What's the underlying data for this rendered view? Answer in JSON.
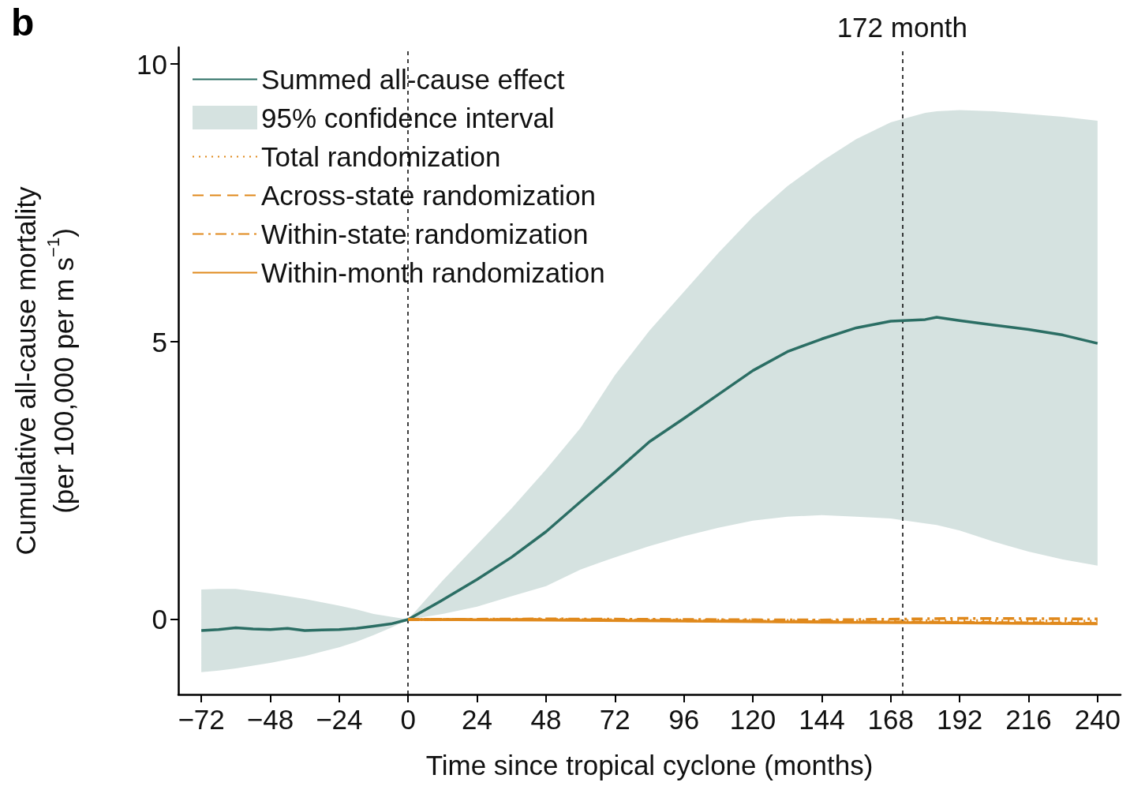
{
  "chart_data": {
    "type": "line",
    "xlabel": "Time since tropical cyclone (months)",
    "ylabel": "Cumulative all-cause mortality\n(per 100,000 per m s$^{−1}$)",
    "annotations": [
      "b",
      "95% confidence interval"
    ],
    "xlim": [
      -80,
      248
    ],
    "xticks": [
      -72,
      -48,
      -24,
      0,
      24,
      48,
      72,
      96,
      120,
      144,
      168,
      192,
      216,
      240
    ],
    "ylim": [
      -1.35,
      10.3
    ],
    "yticks": [
      0,
      5,
      10
    ],
    "grid": false,
    "legend": "top left",
    "marker": "none",
    "ref_lines": [
      {
        "axis": "x",
        "value": 0,
        "label": null,
        "color": "#000000",
        "line_style": "dashed"
      },
      {
        "axis": "x",
        "value": 172,
        "label": "172 month",
        "color": "#000000",
        "line_style": "dashed"
      }
    ],
    "series": [
      {
        "name": "Summed all-cause effect",
        "color": "#2b6e64",
        "line_style": "solid",
        "x": [
          -72,
          -66,
          -60,
          -54,
          -48,
          -42,
          -36,
          -30,
          -24,
          -18,
          -12,
          -6,
          0,
          12,
          24,
          36,
          48,
          60,
          72,
          84,
          96,
          108,
          120,
          132,
          144,
          156,
          168,
          180,
          184,
          192,
          204,
          216,
          228,
          240
        ],
        "values": [
          -0.2,
          -0.18,
          -0.15,
          -0.17,
          -0.18,
          -0.16,
          -0.2,
          -0.19,
          -0.18,
          -0.16,
          -0.12,
          -0.08,
          0,
          0.35,
          0.72,
          1.12,
          1.58,
          2.12,
          2.65,
          3.2,
          3.62,
          4.05,
          4.48,
          4.82,
          5.05,
          5.25,
          5.37,
          5.4,
          5.44,
          5.38,
          5.3,
          5.22,
          5.12,
          4.97
        ],
        "lower": [
          -0.95,
          -0.92,
          -0.88,
          -0.83,
          -0.78,
          -0.72,
          -0.66,
          -0.58,
          -0.5,
          -0.4,
          -0.28,
          -0.15,
          0,
          0.1,
          0.23,
          0.42,
          0.6,
          0.9,
          1.12,
          1.32,
          1.5,
          1.65,
          1.78,
          1.85,
          1.88,
          1.85,
          1.82,
          1.73,
          1.7,
          1.6,
          1.4,
          1.22,
          1.08,
          0.97
        ],
        "upper": [
          0.54,
          0.55,
          0.55,
          0.51,
          0.47,
          0.42,
          0.37,
          0.31,
          0.25,
          0.18,
          0.1,
          0.05,
          0,
          0.7,
          1.35,
          2.0,
          2.7,
          3.45,
          4.4,
          5.2,
          5.9,
          6.6,
          7.25,
          7.8,
          8.25,
          8.65,
          8.95,
          9.12,
          9.15,
          9.17,
          9.15,
          9.1,
          9.05,
          8.98
        ]
      },
      {
        "name": "Total randomization",
        "color": "#e0891c",
        "line_style": "dotted",
        "x": [
          0,
          48,
          96,
          144,
          192,
          240
        ],
        "values": [
          0,
          0,
          -0.01,
          -0.02,
          -0.02,
          -0.03
        ]
      },
      {
        "name": "Across-state randomization",
        "color": "#e0891c",
        "line_style": "dashed",
        "x": [
          0,
          48,
          96,
          144,
          192,
          240
        ],
        "values": [
          0,
          0,
          -0.02,
          -0.04,
          -0.05,
          -0.07
        ]
      },
      {
        "name": "Within-state randomization",
        "color": "#e0891c",
        "line_style": "dashdot",
        "x": [
          0,
          48,
          96,
          144,
          192,
          240
        ],
        "values": [
          0,
          0.01,
          0,
          -0.01,
          0.02,
          0.01
        ]
      },
      {
        "name": "Within-month randomization",
        "color": "#e0891c",
        "line_style": "solid",
        "x": [
          0,
          48,
          96,
          144,
          192,
          240
        ],
        "values": [
          0,
          -0.01,
          -0.03,
          -0.05,
          -0.06,
          -0.08
        ]
      }
    ]
  }
}
